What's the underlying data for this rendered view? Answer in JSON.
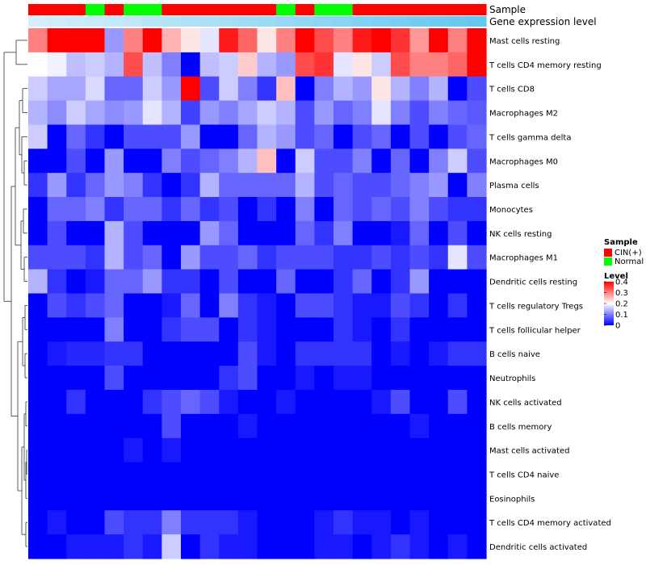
{
  "chart_data": {
    "type": "heatmap",
    "title": "",
    "annotation_tracks": [
      {
        "name": "Sample"
      },
      {
        "name": "Gene expression level"
      }
    ],
    "sample_groups": [
      "C",
      "C",
      "C",
      "N",
      "C",
      "N",
      "N",
      "C",
      "C",
      "C",
      "C",
      "C",
      "C",
      "N",
      "C",
      "N",
      "N",
      "C",
      "C",
      "C",
      "C",
      "C",
      "C",
      "C"
    ],
    "gene_expression_level": [
      0.05,
      0.08,
      0.12,
      0.15,
      0.18,
      0.22,
      0.26,
      0.3,
      0.34,
      0.38,
      0.42,
      0.46,
      0.5,
      0.54,
      0.58,
      0.62,
      0.66,
      0.7,
      0.74,
      0.78,
      0.82,
      0.86,
      0.9,
      0.95
    ],
    "rows": [
      "Mast cells resting",
      "T cells CD4 memory resting",
      "T cells CD8",
      "Macrophages M2",
      "T cells gamma delta",
      "Macrophages M0",
      "Plasma cells",
      "Monocytes",
      "NK cells resting",
      "Macrophages M1",
      "Dendritic cells resting",
      "T cells regulatory  Tregs",
      "T cells follicular helper",
      "B cells naive",
      "Neutrophils",
      "NK cells activated",
      "B cells memory",
      "Mast cells activated",
      "T cells CD4 naive",
      "Eosinophils",
      "T cells CD4 memory activated",
      "Dendritic cells activated"
    ],
    "values": [
      [
        0.3,
        0.4,
        0.4,
        0.4,
        0.12,
        0.3,
        0.4,
        0.26,
        0.22,
        0.18,
        0.38,
        0.32,
        0.22,
        0.3,
        0.4,
        0.34,
        0.3,
        0.38,
        0.4,
        0.36,
        0.28,
        0.4,
        0.3,
        0.4
      ],
      [
        0.2,
        0.19,
        0.15,
        0.16,
        0.14,
        0.34,
        0.15,
        0.1,
        0.0,
        0.15,
        0.16,
        0.24,
        0.14,
        0.12,
        0.34,
        0.36,
        0.18,
        0.22,
        0.16,
        0.34,
        0.3,
        0.3,
        0.32,
        0.4
      ],
      [
        0.16,
        0.13,
        0.13,
        0.17,
        0.08,
        0.08,
        0.16,
        0.12,
        0.4,
        0.06,
        0.16,
        0.1,
        0.04,
        0.25,
        0.0,
        0.1,
        0.14,
        0.12,
        0.22,
        0.14,
        0.1,
        0.14,
        0.0,
        0.06
      ],
      [
        0.14,
        0.11,
        0.16,
        0.13,
        0.11,
        0.12,
        0.18,
        0.14,
        0.05,
        0.12,
        0.1,
        0.13,
        0.16,
        0.14,
        0.06,
        0.12,
        0.08,
        0.1,
        0.18,
        0.1,
        0.06,
        0.1,
        0.08,
        0.07
      ],
      [
        0.16,
        0.0,
        0.08,
        0.04,
        0.0,
        0.06,
        0.06,
        0.06,
        0.12,
        0.0,
        0.0,
        0.08,
        0.14,
        0.12,
        0.06,
        0.08,
        0.0,
        0.06,
        0.08,
        0.0,
        0.06,
        0.0,
        0.06,
        0.08
      ],
      [
        0.0,
        0.0,
        0.06,
        0.0,
        0.12,
        0.0,
        0.0,
        0.1,
        0.06,
        0.08,
        0.1,
        0.14,
        0.25,
        0.0,
        0.16,
        0.06,
        0.06,
        0.1,
        0.0,
        0.08,
        0.0,
        0.1,
        0.16,
        0.06
      ],
      [
        0.04,
        0.12,
        0.04,
        0.08,
        0.12,
        0.1,
        0.04,
        0.0,
        0.04,
        0.14,
        0.08,
        0.08,
        0.08,
        0.08,
        0.14,
        0.06,
        0.08,
        0.06,
        0.06,
        0.08,
        0.1,
        0.12,
        0.0,
        0.1
      ],
      [
        0.0,
        0.08,
        0.08,
        0.1,
        0.04,
        0.08,
        0.08,
        0.04,
        0.08,
        0.04,
        0.06,
        0.0,
        0.04,
        0.0,
        0.1,
        0.0,
        0.08,
        0.06,
        0.08,
        0.06,
        0.1,
        0.06,
        0.04,
        0.04
      ],
      [
        0.0,
        0.06,
        0.0,
        0.0,
        0.14,
        0.06,
        0.0,
        0.0,
        0.0,
        0.12,
        0.08,
        0.0,
        0.0,
        0.0,
        0.08,
        0.04,
        0.1,
        0.0,
        0.0,
        0.02,
        0.08,
        0.0,
        0.06,
        0.0
      ],
      [
        0.06,
        0.06,
        0.06,
        0.04,
        0.14,
        0.06,
        0.08,
        0.0,
        0.12,
        0.06,
        0.06,
        0.08,
        0.04,
        0.06,
        0.06,
        0.06,
        0.04,
        0.04,
        0.06,
        0.04,
        0.06,
        0.04,
        0.18,
        0.06
      ],
      [
        0.14,
        0.04,
        0.0,
        0.02,
        0.08,
        0.08,
        0.12,
        0.04,
        0.04,
        0.0,
        0.06,
        0.0,
        0.0,
        0.08,
        0.0,
        0.0,
        0.04,
        0.08,
        0.0,
        0.04,
        0.12,
        0.0,
        0.0,
        0.0
      ],
      [
        0.0,
        0.06,
        0.04,
        0.06,
        0.08,
        0.0,
        0.0,
        0.02,
        0.08,
        0.0,
        0.1,
        0.04,
        0.02,
        0.0,
        0.06,
        0.06,
        0.04,
        0.02,
        0.02,
        0.06,
        0.04,
        0.0,
        0.04,
        0.0
      ],
      [
        0.0,
        0.0,
        0.0,
        0.0,
        0.1,
        0.0,
        0.0,
        0.04,
        0.06,
        0.06,
        0.0,
        0.04,
        0.02,
        0.0,
        0.0,
        0.0,
        0.04,
        0.02,
        0.0,
        0.04,
        0.0,
        0.0,
        0.0,
        0.0
      ],
      [
        0.0,
        0.02,
        0.03,
        0.03,
        0.04,
        0.04,
        0.0,
        0.0,
        0.0,
        0.0,
        0.0,
        0.06,
        0.02,
        0.0,
        0.04,
        0.04,
        0.04,
        0.04,
        0.0,
        0.02,
        0.0,
        0.02,
        0.04,
        0.04
      ],
      [
        0.0,
        0.0,
        0.0,
        0.0,
        0.06,
        0.0,
        0.0,
        0.0,
        0.0,
        0.0,
        0.04,
        0.06,
        0.0,
        0.0,
        0.02,
        0.0,
        0.02,
        0.02,
        0.0,
        0.0,
        0.0,
        0.0,
        0.0,
        0.0
      ],
      [
        0.0,
        0.0,
        0.04,
        0.0,
        0.0,
        0.0,
        0.04,
        0.06,
        0.08,
        0.06,
        0.02,
        0.0,
        0.0,
        0.02,
        0.0,
        0.0,
        0.0,
        0.0,
        0.02,
        0.06,
        0.0,
        0.0,
        0.06,
        0.0
      ],
      [
        0.0,
        0.0,
        0.0,
        0.0,
        0.0,
        0.0,
        0.0,
        0.06,
        0.0,
        0.0,
        0.0,
        0.02,
        0.0,
        0.0,
        0.0,
        0.0,
        0.0,
        0.0,
        0.0,
        0.0,
        0.02,
        0.0,
        0.0,
        0.0
      ],
      [
        0.0,
        0.0,
        0.0,
        0.0,
        0.0,
        0.02,
        0.0,
        0.02,
        0.0,
        0.0,
        0.0,
        0.0,
        0.0,
        0.0,
        0.0,
        0.0,
        0.0,
        0.0,
        0.0,
        0.0,
        0.0,
        0.0,
        0.0,
        0.0
      ],
      [
        0.0,
        0.0,
        0.0,
        0.0,
        0.0,
        0.0,
        0.0,
        0.0,
        0.0,
        0.0,
        0.0,
        0.0,
        0.0,
        0.0,
        0.0,
        0.0,
        0.0,
        0.0,
        0.0,
        0.0,
        0.0,
        0.0,
        0.0,
        0.0
      ],
      [
        0.0,
        0.0,
        0.0,
        0.0,
        0.0,
        0.0,
        0.0,
        0.0,
        0.0,
        0.0,
        0.0,
        0.0,
        0.0,
        0.0,
        0.0,
        0.0,
        0.0,
        0.0,
        0.0,
        0.0,
        0.0,
        0.0,
        0.0,
        0.0
      ],
      [
        0.0,
        0.02,
        0.0,
        0.0,
        0.06,
        0.04,
        0.04,
        0.1,
        0.04,
        0.04,
        0.04,
        0.02,
        0.0,
        0.0,
        0.0,
        0.02,
        0.04,
        0.02,
        0.02,
        0.0,
        0.02,
        0.0,
        0.0,
        0.0
      ],
      [
        0.0,
        0.0,
        0.02,
        0.02,
        0.02,
        0.04,
        0.02,
        0.16,
        0.0,
        0.04,
        0.02,
        0.02,
        0.0,
        0.0,
        0.0,
        0.02,
        0.02,
        0.0,
        0.02,
        0.04,
        0.02,
        0.0,
        0.02,
        0.0
      ]
    ],
    "value_range": [
      0,
      0.4
    ],
    "legend": {
      "sample_title": "Sample",
      "sample_entries": [
        {
          "label": "CIN(+)",
          "color": "#ff0000"
        },
        {
          "label": "Normal",
          "color": "#00ff00"
        }
      ],
      "level_title": "Level",
      "level_ticks": [
        "0.4",
        "0.3",
        "0.2",
        "0.1",
        "0"
      ]
    },
    "colors": {
      "low": "#0000ff",
      "mid": "#ffffff",
      "high": "#ff0000",
      "cin": "#ff0000",
      "normal": "#00ff00"
    }
  }
}
